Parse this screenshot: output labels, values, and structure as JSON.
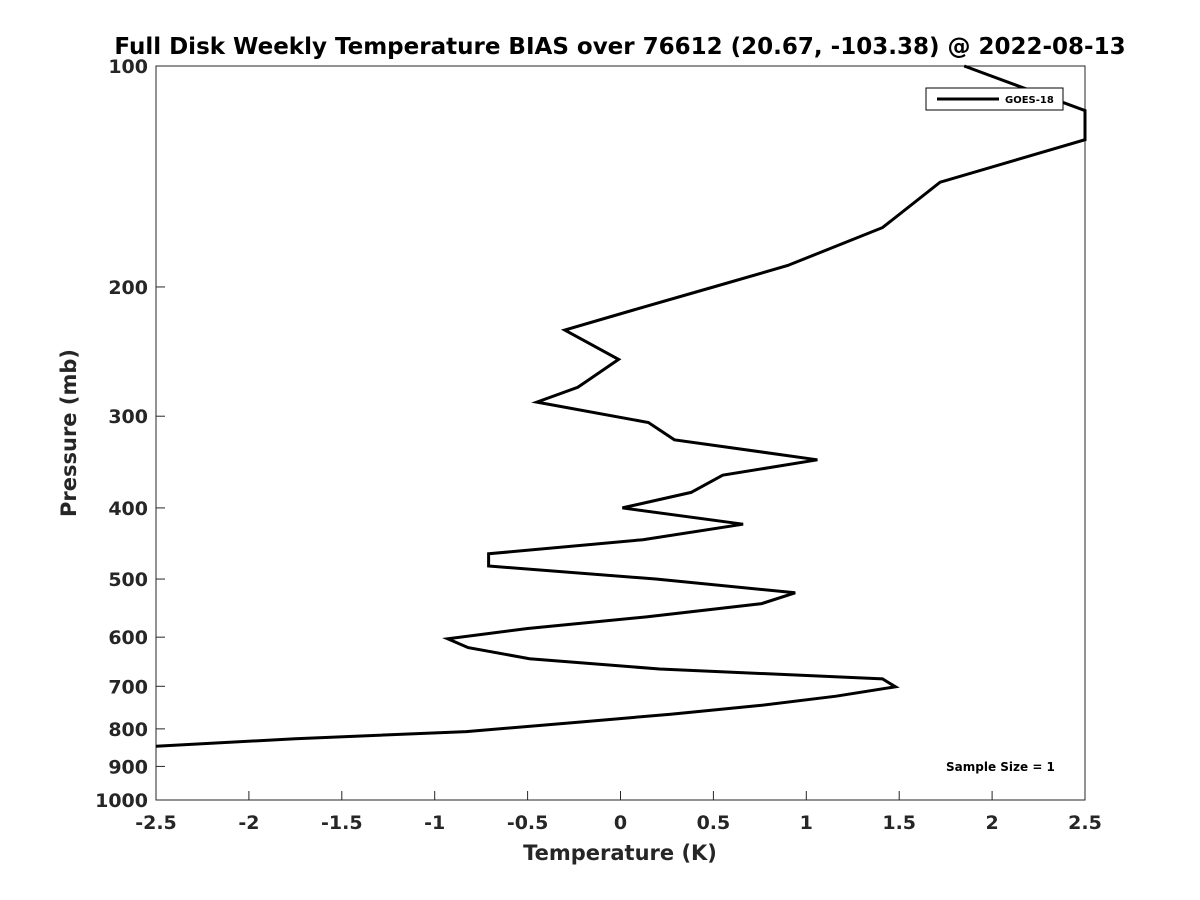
{
  "chart_data": {
    "type": "line",
    "title": "Full Disk Weekly Temperature BIAS over 76612 (20.67, -103.38) @ 2022-08-13",
    "xlabel": "Temperature (K)",
    "ylabel": "Pressure (mb)",
    "xlim": [
      -2.5,
      2.5
    ],
    "ylim": [
      100,
      1000
    ],
    "y_scale": "log",
    "y_reversed": true,
    "grid": false,
    "x_ticks": [
      -2.5,
      -2,
      -1.5,
      -1,
      -0.5,
      0,
      0.5,
      1,
      1.5,
      2,
      2.5
    ],
    "x_tick_labels": [
      "-2.5",
      "-2",
      "-1.5",
      "-1",
      "-0.5",
      "0",
      "0.5",
      "1",
      "1.5",
      "2",
      "2.5"
    ],
    "y_ticks": [
      100,
      200,
      300,
      400,
      500,
      600,
      700,
      800,
      900,
      1000
    ],
    "y_tick_labels": [
      "100",
      "200",
      "300",
      "400",
      "500",
      "600",
      "700",
      "800",
      "900",
      "1000"
    ],
    "legend_position": "top-right",
    "annotation": "Sample Size = 1",
    "series": [
      {
        "name": "GOES-18",
        "color": "#000000",
        "points": [
          {
            "x": 1.85,
            "y": 100
          },
          {
            "x": 2.5,
            "y": 115
          },
          {
            "x": 2.5,
            "y": 126
          },
          {
            "x": 1.72,
            "y": 144
          },
          {
            "x": 1.41,
            "y": 166
          },
          {
            "x": 0.9,
            "y": 187
          },
          {
            "x": 0.5,
            "y": 200
          },
          {
            "x": 0.07,
            "y": 215
          },
          {
            "x": -0.3,
            "y": 229
          },
          {
            "x": -0.01,
            "y": 251
          },
          {
            "x": -0.23,
            "y": 274
          },
          {
            "x": -0.45,
            "y": 287
          },
          {
            "x": 0.15,
            "y": 306
          },
          {
            "x": 0.29,
            "y": 323
          },
          {
            "x": 1.06,
            "y": 344
          },
          {
            "x": 0.55,
            "y": 361
          },
          {
            "x": 0.38,
            "y": 381
          },
          {
            "x": 0.01,
            "y": 400
          },
          {
            "x": 0.66,
            "y": 421
          },
          {
            "x": 0.12,
            "y": 442
          },
          {
            "x": -0.71,
            "y": 462
          },
          {
            "x": -0.71,
            "y": 480
          },
          {
            "x": 0.19,
            "y": 500
          },
          {
            "x": 0.94,
            "y": 522
          },
          {
            "x": 0.76,
            "y": 540
          },
          {
            "x": 0.14,
            "y": 563
          },
          {
            "x": -0.5,
            "y": 584
          },
          {
            "x": -0.93,
            "y": 603
          },
          {
            "x": -0.82,
            "y": 620
          },
          {
            "x": -0.49,
            "y": 642
          },
          {
            "x": 0.21,
            "y": 663
          },
          {
            "x": 1.41,
            "y": 684
          },
          {
            "x": 1.48,
            "y": 701
          },
          {
            "x": 1.16,
            "y": 722
          },
          {
            "x": 0.76,
            "y": 743
          },
          {
            "x": 0.27,
            "y": 764
          },
          {
            "x": -0.19,
            "y": 782
          },
          {
            "x": -0.83,
            "y": 807
          },
          {
            "x": -1.75,
            "y": 825
          },
          {
            "x": -2.5,
            "y": 845
          }
        ]
      }
    ]
  }
}
